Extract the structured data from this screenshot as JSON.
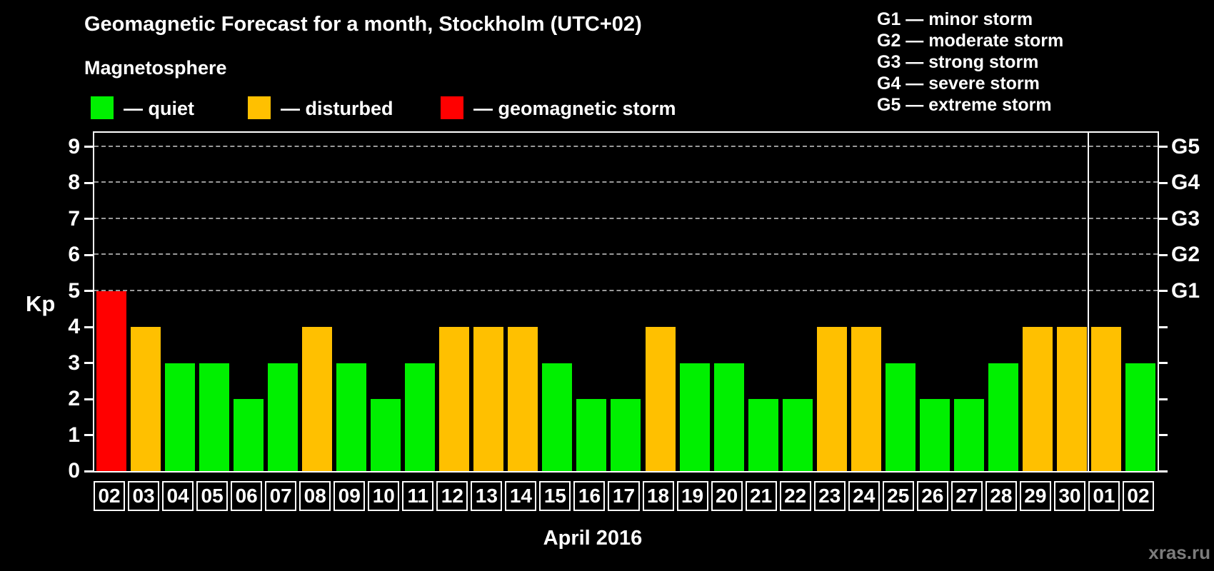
{
  "title": "Geomagnetic Forecast for a month, Stockholm (UTC+02)",
  "subtitle": "Magnetosphere",
  "legend": {
    "items": [
      {
        "label": "— quiet",
        "status": "quiet",
        "color": "#00f000"
      },
      {
        "label": "— disturbed",
        "status": "disturbed",
        "color": "#ffc000"
      },
      {
        "label": "— geomagnetic storm",
        "status": "storm",
        "color": "#ff0000"
      }
    ]
  },
  "storm_scale_legend": [
    "G1 — minor storm",
    "G2 — moderate storm",
    "G3 — strong storm",
    "G4 — severe storm",
    "G5 — extreme storm"
  ],
  "watermark": "xras.ru",
  "chart_data": {
    "type": "bar",
    "title": "Geomagnetic Forecast for a month, Stockholm (UTC+02)",
    "xlabel": "April 2016",
    "ylabel": "Kp",
    "ylim": [
      0,
      9.4
    ],
    "yticks": [
      0,
      1,
      2,
      3,
      4,
      5,
      6,
      7,
      8,
      9
    ],
    "gridlines_at": [
      5,
      6,
      7,
      8,
      9
    ],
    "grid": "horizontal dashed lines at Kp 5-9 (storm levels G1-G5)",
    "legend_position": "top",
    "right_axis_labels": [
      {
        "label": "G5",
        "kp": 9
      },
      {
        "label": "G4",
        "kp": 8
      },
      {
        "label": "G3",
        "kp": 7
      },
      {
        "label": "G2",
        "kp": 6
      },
      {
        "label": "G1",
        "kp": 5
      }
    ],
    "categories": [
      "02",
      "03",
      "04",
      "05",
      "06",
      "07",
      "08",
      "09",
      "10",
      "11",
      "12",
      "13",
      "14",
      "15",
      "16",
      "17",
      "18",
      "19",
      "20",
      "21",
      "22",
      "23",
      "24",
      "25",
      "26",
      "27",
      "28",
      "29",
      "30",
      "01",
      "02"
    ],
    "values": [
      5,
      4,
      3,
      3,
      2,
      3,
      4,
      3,
      2,
      3,
      4,
      4,
      4,
      3,
      2,
      2,
      4,
      3,
      3,
      2,
      2,
      4,
      4,
      3,
      2,
      2,
      3,
      4,
      4,
      4,
      3
    ],
    "statuses": [
      "storm",
      "disturbed",
      "quiet",
      "quiet",
      "quiet",
      "quiet",
      "disturbed",
      "quiet",
      "quiet",
      "quiet",
      "disturbed",
      "disturbed",
      "disturbed",
      "quiet",
      "quiet",
      "quiet",
      "disturbed",
      "quiet",
      "quiet",
      "quiet",
      "quiet",
      "disturbed",
      "disturbed",
      "quiet",
      "quiet",
      "quiet",
      "quiet",
      "disturbed",
      "disturbed",
      "disturbed",
      "quiet"
    ],
    "status_colors": {
      "quiet": "#00f000",
      "disturbed": "#ffc000",
      "storm": "#ff0000"
    },
    "month_separator_after_index": 28
  }
}
